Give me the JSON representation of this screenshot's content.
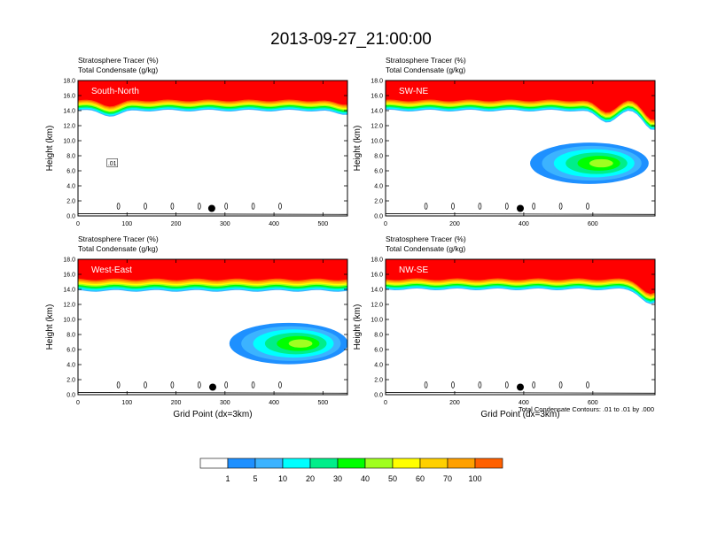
{
  "main_title": "2013-09-27_21:00:00",
  "colors": {
    "levels": [
      "#ffffff",
      "#1e90ff",
      "#3cb3ff",
      "#00ffff",
      "#00ee8a",
      "#00ff00",
      "#a0ff20",
      "#ffff00",
      "#ffd000",
      "#ffa000",
      "#ff6000",
      "#ff0000"
    ],
    "marker": "#000000"
  },
  "colorbar": {
    "labels": [
      "1",
      "5",
      "10",
      "20",
      "30",
      "40",
      "50",
      "60",
      "70",
      "100"
    ]
  },
  "footnote": "Total Condensate Contours: .01 to .01 by .000",
  "chart_data": [
    {
      "type": "heatmap",
      "panel_label": "South-North",
      "title_line1": "Stratosphere Tracer   (%)",
      "title_line2": "Total Condensate   (g/kg)",
      "ylabel": "Height (km)",
      "xlabel": "",
      "xlim": [
        0,
        550
      ],
      "ylim": [
        0,
        18
      ],
      "xticks": [
        0,
        100,
        200,
        300,
        400,
        500
      ],
      "yticks": [
        "0.0",
        "2.0",
        "4.0",
        "6.0",
        "8.0",
        "10.0",
        "12.0",
        "14.0",
        "16.0",
        "18.0"
      ],
      "tracer_base_km": 14.0,
      "tracer_full_km": 15.5,
      "tropopause_dips": [
        {
          "x": 68,
          "km": 13.3
        },
        {
          "x": 540,
          "km": 13.5
        }
      ],
      "blob_center": null,
      "blob_base_km": null,
      "blob_top_km": null,
      "marker": {
        "x": 273,
        "km": 1.0
      },
      "contour_label": ".01",
      "contour_label_at": {
        "x": 70,
        "km": 7.0
      }
    },
    {
      "type": "heatmap",
      "panel_label": "SW-NE",
      "title_line1": "Stratosphere Tracer   (%)",
      "title_line2": "Total Condensate   (g/kg)",
      "ylabel": "Height (km)",
      "xlabel": "",
      "xlim": [
        0,
        780
      ],
      "ylim": [
        0,
        18
      ],
      "xticks": [
        0,
        200,
        400,
        600
      ],
      "yticks": [
        "0.0",
        "2.0",
        "4.0",
        "6.0",
        "8.0",
        "10.0",
        "12.0",
        "14.0",
        "16.0",
        "18.0"
      ],
      "tracer_base_km": 14.0,
      "tracer_full_km": 15.5,
      "tropopause_dips": [
        {
          "x": 640,
          "km": 12.5
        },
        {
          "x": 775,
          "km": 11.5
        }
      ],
      "blob_center": {
        "x": 590,
        "km": 7.0
      },
      "blob_base_km": 4.5,
      "blob_top_km": 10.0,
      "marker": {
        "x": 390,
        "km": 1.0
      },
      "contour_label": "",
      "contour_label_at": null
    },
    {
      "type": "heatmap",
      "panel_label": "West-East",
      "title_line1": "Stratosphere Tracer   (%)",
      "title_line2": "Total Condensate   (g/kg)",
      "ylabel": "Height (km)",
      "xlabel": "Grid Point (dx=3km)",
      "xlim": [
        0,
        550
      ],
      "ylim": [
        0,
        18
      ],
      "xticks": [
        0,
        100,
        200,
        300,
        400,
        500
      ],
      "yticks": [
        "0.0",
        "2.0",
        "4.0",
        "6.0",
        "8.0",
        "10.0",
        "12.0",
        "14.0",
        "16.0",
        "18.0"
      ],
      "tracer_base_km": 13.8,
      "tracer_full_km": 15.5,
      "tropopause_dips": [],
      "blob_center": {
        "x": 430,
        "km": 6.8
      },
      "blob_base_km": 4.5,
      "blob_top_km": 10.0,
      "marker": {
        "x": 275,
        "km": 1.0
      },
      "contour_label": "",
      "contour_label_at": null
    },
    {
      "type": "heatmap",
      "panel_label": "NW-SE",
      "title_line1": "Stratosphere Tracer   (%)",
      "title_line2": "Total Condensate   (g/kg)",
      "ylabel": "Height (km)",
      "xlabel": "Grid Point (dx=3km)",
      "xlim": [
        0,
        780
      ],
      "ylim": [
        0,
        18
      ],
      "xticks": [
        0,
        200,
        400,
        600
      ],
      "yticks": [
        "0.0",
        "2.0",
        "4.0",
        "6.0",
        "8.0",
        "10.0",
        "12.0",
        "14.0",
        "16.0",
        "18.0"
      ],
      "tracer_base_km": 14.0,
      "tracer_full_km": 15.5,
      "tropopause_dips": [
        {
          "x": 770,
          "km": 12.0
        }
      ],
      "blob_center": null,
      "blob_base_km": null,
      "blob_top_km": null,
      "marker": {
        "x": 390,
        "km": 1.0
      },
      "contour_label": "",
      "contour_label_at": null
    }
  ]
}
